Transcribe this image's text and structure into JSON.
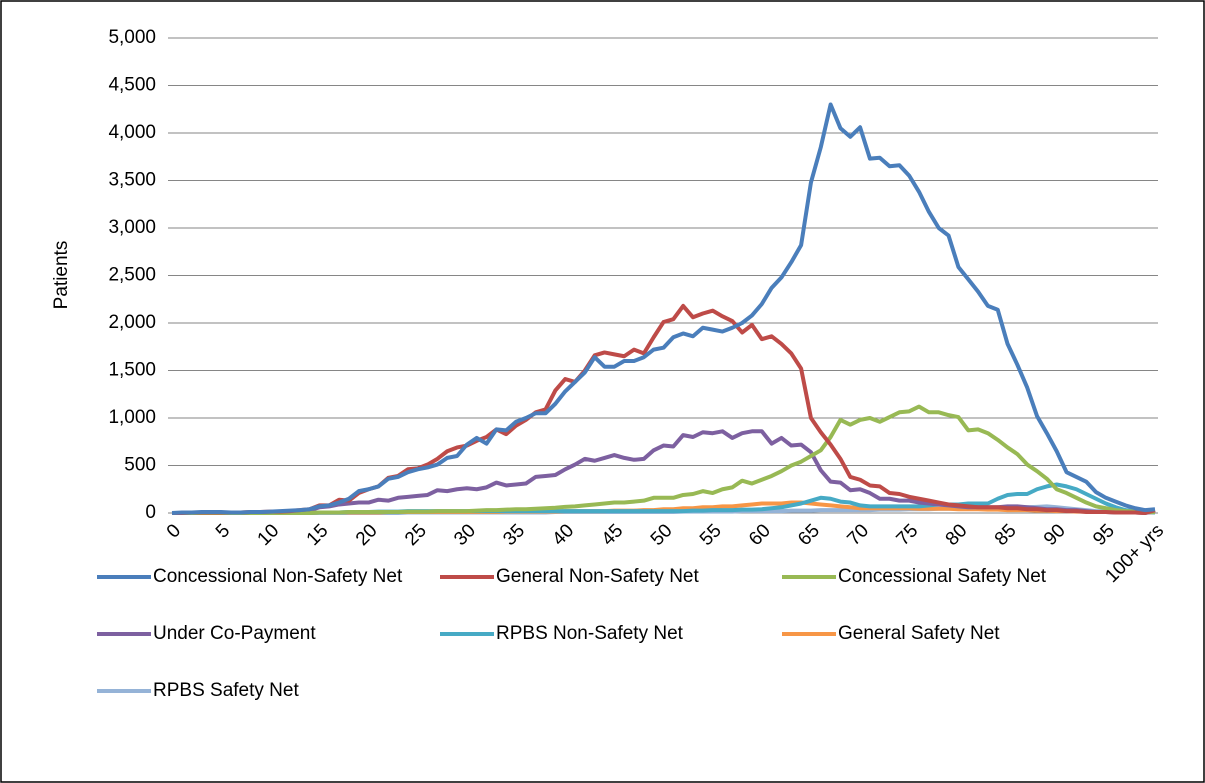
{
  "chart_data": {
    "type": "line",
    "y_label": "Patients",
    "categories": [
      "0",
      null,
      null,
      null,
      null,
      "5",
      null,
      null,
      null,
      null,
      "10",
      null,
      null,
      null,
      null,
      "15",
      null,
      null,
      null,
      null,
      "20",
      null,
      null,
      null,
      null,
      "25",
      null,
      null,
      null,
      null,
      "30",
      null,
      null,
      null,
      null,
      "35",
      null,
      null,
      null,
      null,
      "40",
      null,
      null,
      null,
      null,
      "45",
      null,
      null,
      null,
      null,
      "50",
      null,
      null,
      null,
      null,
      "55",
      null,
      null,
      null,
      null,
      "60",
      null,
      null,
      null,
      null,
      "65",
      null,
      null,
      null,
      null,
      "70",
      null,
      null,
      null,
      null,
      "75",
      null,
      null,
      null,
      null,
      "80",
      null,
      null,
      null,
      null,
      "85",
      null,
      null,
      null,
      null,
      "90",
      null,
      null,
      null,
      null,
      "95",
      null,
      null,
      null,
      null,
      "100+ yrs"
    ],
    "ylim": [
      0,
      5000
    ],
    "yticks": [
      0,
      500,
      {
        "value": 1000,
        "label": "1,000"
      },
      {
        "value": 1500,
        "label": "1,500"
      },
      {
        "value": 2000,
        "label": "2,000"
      },
      {
        "value": 2500,
        "label": "2,500"
      },
      {
        "value": 3000,
        "label": "3,000"
      },
      {
        "value": 3500,
        "label": "3,500"
      },
      {
        "value": 4000,
        "label": "4,000"
      },
      {
        "value": 4500,
        "label": "4,500"
      },
      {
        "value": 5000,
        "label": "5,000"
      }
    ],
    "grid": true,
    "legend": "bottom",
    "series": [
      {
        "name": "Concessional Non-Safety Net",
        "color": "#4a7ebb",
        "values": [
          0,
          5,
          5,
          10,
          10,
          10,
          5,
          5,
          10,
          10,
          15,
          20,
          25,
          30,
          40,
          70,
          80,
          110,
          150,
          230,
          250,
          280,
          360,
          380,
          430,
          460,
          480,
          510,
          580,
          600,
          720,
          790,
          730,
          880,
          870,
          960,
          1000,
          1050,
          1050,
          1150,
          1280,
          1380,
          1480,
          1640,
          1540,
          1540,
          1600,
          1600,
          1640,
          1720,
          1740,
          1850,
          1890,
          1860,
          1950,
          1930,
          1910,
          1950,
          2000,
          2080,
          2200,
          2370,
          2480,
          2640,
          2820,
          3480,
          3850,
          4300,
          4050,
          3960,
          4060,
          3730,
          3740,
          3650,
          3660,
          3550,
          3380,
          3170,
          3000,
          2920,
          2590,
          2460,
          2330,
          2180,
          2140,
          1780,
          1560,
          1320,
          1020,
          840,
          650,
          430,
          380,
          330,
          220,
          160,
          120,
          80,
          50,
          30,
          40
        ]
      },
      {
        "name": "General Non-Safety Net",
        "color": "#be4b48",
        "values": [
          0,
          0,
          5,
          5,
          5,
          5,
          5,
          5,
          10,
          10,
          15,
          15,
          20,
          30,
          40,
          80,
          80,
          140,
          130,
          210,
          250,
          280,
          370,
          390,
          460,
          470,
          510,
          570,
          650,
          690,
          710,
          760,
          800,
          880,
          830,
          920,
          980,
          1060,
          1090,
          1290,
          1410,
          1380,
          1500,
          1660,
          1690,
          1670,
          1650,
          1720,
          1680,
          1850,
          2010,
          2040,
          2180,
          2060,
          2100,
          2130,
          2070,
          2020,
          1900,
          1980,
          1830,
          1860,
          1780,
          1680,
          1520,
          1000,
          850,
          720,
          570,
          380,
          350,
          290,
          280,
          210,
          200,
          170,
          150,
          130,
          110,
          90,
          80,
          70,
          60,
          60,
          60,
          50,
          50,
          40,
          40,
          30,
          30,
          20,
          20,
          10,
          10,
          10,
          5,
          5,
          5,
          0,
          30
        ]
      },
      {
        "name": "Concessional Safety Net",
        "color": "#98b954",
        "values": [
          0,
          0,
          0,
          0,
          0,
          0,
          0,
          0,
          0,
          0,
          0,
          0,
          0,
          0,
          0,
          5,
          5,
          5,
          10,
          10,
          10,
          10,
          10,
          10,
          15,
          15,
          15,
          20,
          20,
          20,
          20,
          25,
          30,
          30,
          35,
          40,
          40,
          45,
          50,
          55,
          65,
          70,
          80,
          90,
          100,
          110,
          110,
          120,
          130,
          160,
          160,
          160,
          190,
          200,
          230,
          210,
          250,
          270,
          340,
          310,
          350,
          390,
          440,
          500,
          540,
          600,
          660,
          800,
          980,
          930,
          980,
          1000,
          960,
          1010,
          1060,
          1070,
          1120,
          1060,
          1060,
          1030,
          1010,
          870,
          880,
          840,
          770,
          690,
          620,
          510,
          440,
          360,
          250,
          210,
          160,
          110,
          70,
          50,
          30,
          20,
          15,
          10,
          10
        ]
      },
      {
        "name": "Under Co-Payment",
        "color": "#7d60a0",
        "values": [
          0,
          0,
          5,
          5,
          5,
          5,
          5,
          5,
          5,
          10,
          10,
          15,
          20,
          25,
          30,
          60,
          70,
          90,
          100,
          110,
          110,
          140,
          130,
          160,
          170,
          180,
          190,
          240,
          230,
          250,
          260,
          250,
          270,
          320,
          290,
          300,
          310,
          380,
          390,
          400,
          460,
          510,
          570,
          550,
          580,
          610,
          580,
          560,
          570,
          660,
          710,
          700,
          820,
          800,
          850,
          840,
          860,
          790,
          840,
          860,
          860,
          730,
          790,
          710,
          720,
          640,
          450,
          330,
          320,
          240,
          250,
          210,
          150,
          150,
          130,
          130,
          110,
          100,
          90,
          80,
          70,
          60,
          60,
          60,
          60,
          70,
          70,
          60,
          50,
          40,
          40,
          30,
          30,
          20,
          10,
          10,
          5,
          5,
          5,
          0,
          20
        ]
      },
      {
        "name": "RPBS Non-Safety Net",
        "color": "#46aac5",
        "values": [
          0,
          0,
          0,
          0,
          0,
          0,
          0,
          0,
          0,
          0,
          0,
          0,
          0,
          0,
          0,
          5,
          5,
          5,
          10,
          10,
          10,
          15,
          15,
          15,
          20,
          20,
          20,
          20,
          20,
          20,
          20,
          20,
          20,
          20,
          20,
          20,
          20,
          20,
          20,
          20,
          20,
          20,
          20,
          20,
          20,
          20,
          20,
          20,
          20,
          20,
          20,
          20,
          20,
          25,
          25,
          30,
          30,
          30,
          35,
          35,
          40,
          50,
          60,
          80,
          100,
          130,
          160,
          150,
          120,
          110,
          80,
          70,
          70,
          70,
          70,
          70,
          70,
          80,
          90,
          90,
          90,
          100,
          100,
          100,
          150,
          190,
          200,
          200,
          250,
          280,
          300,
          280,
          250,
          200,
          150,
          100,
          60,
          30,
          20,
          10,
          5
        ]
      },
      {
        "name": "General Safety Net",
        "color": "#f79646",
        "values": [
          0,
          0,
          0,
          0,
          0,
          0,
          0,
          0,
          0,
          0,
          0,
          0,
          0,
          0,
          0,
          5,
          5,
          5,
          5,
          5,
          5,
          5,
          10,
          10,
          10,
          10,
          10,
          10,
          10,
          10,
          10,
          10,
          10,
          10,
          15,
          15,
          15,
          15,
          15,
          15,
          20,
          20,
          20,
          20,
          20,
          25,
          25,
          25,
          30,
          30,
          40,
          40,
          50,
          50,
          60,
          60,
          70,
          70,
          80,
          90,
          100,
          100,
          100,
          110,
          110,
          100,
          90,
          80,
          70,
          60,
          50,
          50,
          50,
          50,
          50,
          50,
          45,
          45,
          45,
          45,
          40,
          40,
          40,
          35,
          35,
          30,
          30,
          30,
          25,
          25,
          20,
          20,
          15,
          15,
          10,
          10,
          10,
          5,
          5,
          5,
          5
        ]
      },
      {
        "name": "RPBS Safety Net",
        "color": "#95b3d7",
        "values": [
          0,
          0,
          0,
          0,
          0,
          0,
          0,
          0,
          0,
          0,
          0,
          0,
          0,
          0,
          0,
          0,
          0,
          0,
          0,
          0,
          0,
          0,
          0,
          0,
          5,
          5,
          5,
          5,
          5,
          5,
          5,
          5,
          5,
          5,
          5,
          5,
          5,
          5,
          5,
          10,
          10,
          10,
          10,
          10,
          10,
          10,
          10,
          10,
          10,
          10,
          10,
          10,
          15,
          15,
          15,
          15,
          15,
          15,
          20,
          20,
          20,
          20,
          20,
          25,
          25,
          25,
          30,
          30,
          30,
          30,
          30,
          30,
          35,
          35,
          35,
          40,
          40,
          40,
          45,
          45,
          50,
          50,
          50,
          55,
          55,
          60,
          60,
          60,
          65,
          70,
          60,
          50,
          40,
          30,
          20,
          20,
          10,
          10,
          5,
          5,
          5
        ]
      }
    ]
  }
}
